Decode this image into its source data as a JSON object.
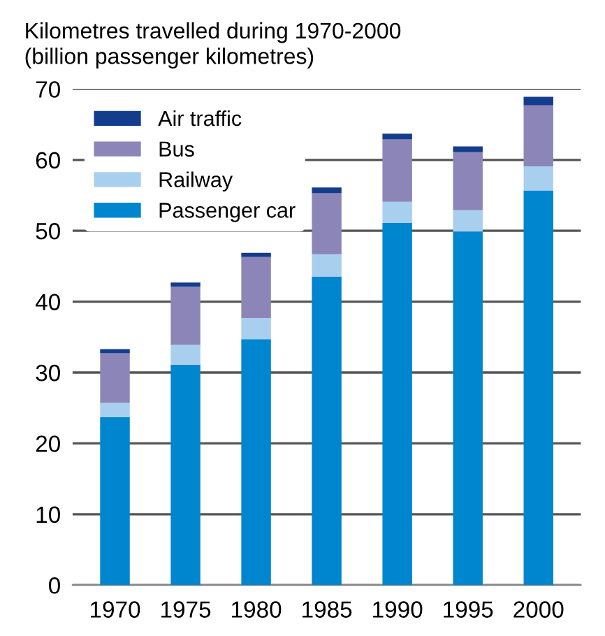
{
  "chart_data": {
    "type": "bar",
    "title": "Kilometres travelled during 1970-2000",
    "subtitle": "(billion passenger kilometres)",
    "categories": [
      "1970",
      "1975",
      "1980",
      "1985",
      "1990",
      "1995",
      "2000"
    ],
    "stacked": true,
    "series": [
      {
        "name": "Passenger car",
        "color": "#0085cf",
        "values": [
          23.7,
          31.1,
          34.7,
          43.5,
          51.1,
          49.9,
          55.7
        ]
      },
      {
        "name": "Railway",
        "color": "#a8cfee",
        "values": [
          2.0,
          2.8,
          3.0,
          3.2,
          3.0,
          3.0,
          3.4
        ]
      },
      {
        "name": "Bus",
        "color": "#8c86b8",
        "values": [
          7.0,
          8.2,
          8.6,
          8.6,
          8.8,
          8.2,
          8.6
        ]
      },
      {
        "name": "Air traffic",
        "color": "#143c8c",
        "values": [
          0.6,
          0.6,
          0.6,
          0.8,
          0.8,
          0.8,
          1.2
        ]
      }
    ],
    "ylim": [
      0,
      70
    ],
    "yticks": [
      0,
      10,
      20,
      30,
      40,
      50,
      60,
      70
    ],
    "grid": "y",
    "legend": "top left"
  }
}
